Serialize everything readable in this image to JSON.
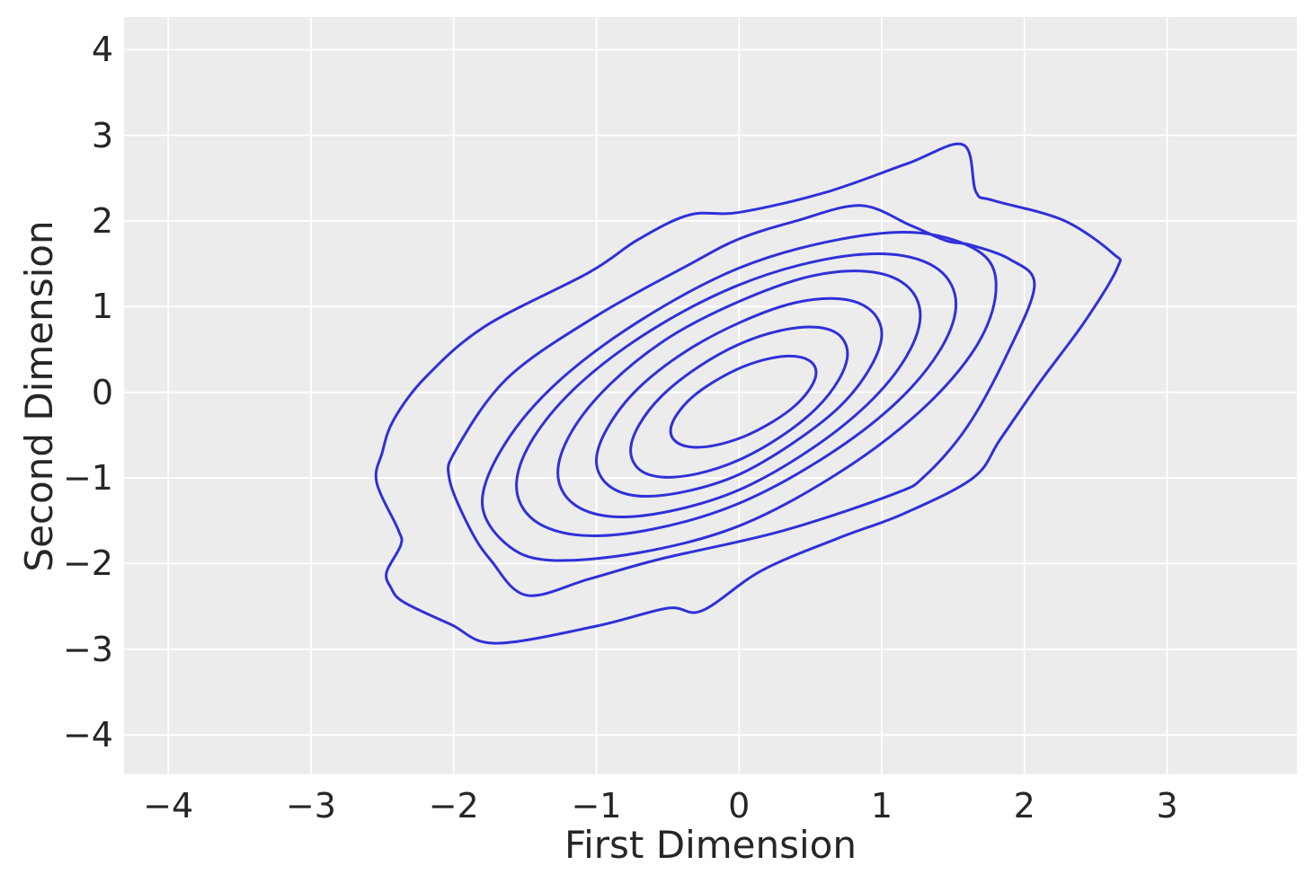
{
  "figure": {
    "background": "#ffffff",
    "axes_background": "#ececec",
    "grid_color": "#ffffff",
    "text_color": "#262626",
    "contour_color": "#3030d8",
    "contour_line_width": 3,
    "grid_line_width": 1.8
  },
  "chart_data": {
    "type": "contour",
    "subtype": "kde-density-contour",
    "title": "",
    "xlabel": "First Dimension",
    "ylabel": "Second Dimension",
    "x_ticks": [
      -4,
      -3,
      -2,
      -1,
      0,
      1,
      2,
      3
    ],
    "y_ticks": [
      -4,
      -3,
      -2,
      -1,
      0,
      1,
      2,
      3,
      4
    ],
    "xlim": [
      -4.31,
      3.91
    ],
    "ylim": [
      -4.46,
      4.38
    ],
    "grid": true,
    "legend": false,
    "levels_count": 8,
    "center": [
      0.03,
      -0.11
    ],
    "contours": [
      [
        [
          2.65,
          1.45
        ],
        [
          2.62,
          1.62
        ],
        [
          2.27,
          2.01
        ],
        [
          1.78,
          2.24
        ],
        [
          1.66,
          2.34
        ],
        [
          1.57,
          2.89
        ],
        [
          1.18,
          2.67
        ],
        [
          0.6,
          2.33
        ],
        [
          0.0,
          2.1
        ],
        [
          -0.35,
          2.07
        ],
        [
          -0.71,
          1.78
        ],
        [
          -1.05,
          1.4
        ],
        [
          -1.78,
          0.77
        ],
        [
          -2.2,
          0.17
        ],
        [
          -2.42,
          -0.32
        ],
        [
          -2.5,
          -0.7
        ],
        [
          -2.54,
          -1.05
        ],
        [
          -2.39,
          -1.6
        ],
        [
          -2.37,
          -1.78
        ],
        [
          -2.47,
          -2.1
        ],
        [
          -2.44,
          -2.28
        ],
        [
          -2.35,
          -2.45
        ],
        [
          -2.02,
          -2.71
        ],
        [
          -1.71,
          -2.93
        ],
        [
          -1.0,
          -2.73
        ],
        [
          -0.5,
          -2.52
        ],
        [
          -0.26,
          -2.55
        ],
        [
          0.16,
          -2.08
        ],
        [
          0.7,
          -1.7
        ],
        [
          1.15,
          -1.42
        ],
        [
          1.64,
          -1.0
        ],
        [
          1.83,
          -0.55
        ],
        [
          2.1,
          0.1
        ],
        [
          2.42,
          0.82
        ]
      ],
      [
        [
          2.07,
          1.25
        ],
        [
          1.9,
          1.55
        ],
        [
          1.62,
          1.72
        ],
        [
          1.45,
          1.77
        ],
        [
          1.2,
          1.95
        ],
        [
          0.85,
          2.18
        ],
        [
          0.4,
          2.0
        ],
        [
          0.0,
          1.79
        ],
        [
          -0.35,
          1.49
        ],
        [
          -1.0,
          0.89
        ],
        [
          -1.62,
          0.17
        ],
        [
          -1.98,
          -0.66
        ],
        [
          -2.03,
          -1.01
        ],
        [
          -1.89,
          -1.58
        ],
        [
          -1.74,
          -1.96
        ],
        [
          -1.49,
          -2.37
        ],
        [
          -1.05,
          -2.18
        ],
        [
          -0.56,
          -1.95
        ],
        [
          0.3,
          -1.62
        ],
        [
          1.08,
          -1.19
        ],
        [
          1.3,
          -0.98
        ],
        [
          1.6,
          -0.4
        ],
        [
          1.88,
          0.45
        ]
      ],
      [
        [
          1.8,
          1.18
        ],
        [
          1.7,
          1.62
        ],
        [
          1.27,
          1.86
        ],
        [
          0.69,
          1.78
        ],
        [
          0.0,
          1.45
        ],
        [
          -0.69,
          0.84
        ],
        [
          -1.27,
          0.12
        ],
        [
          -1.64,
          -0.6
        ],
        [
          -1.8,
          -1.28
        ],
        [
          -1.64,
          -1.76
        ],
        [
          -1.33,
          -1.96
        ],
        [
          -0.69,
          -1.87
        ],
        [
          0.0,
          -1.56
        ],
        [
          0.69,
          -0.95
        ],
        [
          1.27,
          -0.22
        ],
        [
          1.66,
          0.53
        ]
      ],
      [
        [
          1.52,
          1.03
        ],
        [
          1.4,
          1.43
        ],
        [
          1.07,
          1.61
        ],
        [
          0.57,
          1.54
        ],
        [
          -0.02,
          1.24
        ],
        [
          -0.61,
          0.73
        ],
        [
          -1.11,
          0.11
        ],
        [
          -1.44,
          -0.53
        ],
        [
          -1.56,
          -1.09
        ],
        [
          -1.44,
          -1.49
        ],
        [
          -1.11,
          -1.67
        ],
        [
          -0.61,
          -1.6
        ],
        [
          -0.02,
          -1.31
        ],
        [
          0.57,
          -0.79
        ],
        [
          1.07,
          -0.17
        ],
        [
          1.4,
          0.47
        ]
      ],
      [
        [
          1.27,
          0.9
        ],
        [
          1.17,
          1.25
        ],
        [
          0.9,
          1.41
        ],
        [
          0.49,
          1.35
        ],
        [
          0.0,
          1.06
        ],
        [
          -0.49,
          0.64
        ],
        [
          -0.9,
          0.1
        ],
        [
          -1.17,
          -0.45
        ],
        [
          -1.27,
          -0.94
        ],
        [
          -1.17,
          -1.29
        ],
        [
          -0.9,
          -1.45
        ],
        [
          -0.49,
          -1.39
        ],
        [
          0.0,
          -1.14
        ],
        [
          0.49,
          -0.68
        ],
        [
          0.9,
          -0.14
        ],
        [
          1.17,
          0.41
        ]
      ],
      [
        [
          1.0,
          0.68
        ],
        [
          0.92,
          0.96
        ],
        [
          0.71,
          1.09
        ],
        [
          0.38,
          1.04
        ],
        [
          0.0,
          0.81
        ],
        [
          -0.38,
          0.47
        ],
        [
          -0.71,
          0.04
        ],
        [
          -0.92,
          -0.41
        ],
        [
          -1.0,
          -0.8
        ],
        [
          -0.92,
          -1.08
        ],
        [
          -0.71,
          -1.21
        ],
        [
          -0.38,
          -1.16
        ],
        [
          0.0,
          -0.96
        ],
        [
          0.38,
          -0.59
        ],
        [
          0.71,
          -0.16
        ],
        [
          0.92,
          0.29
        ]
      ],
      [
        [
          0.76,
          0.45
        ],
        [
          0.7,
          0.67
        ],
        [
          0.54,
          0.76
        ],
        [
          0.29,
          0.72
        ],
        [
          0.0,
          0.56
        ],
        [
          -0.29,
          0.29
        ],
        [
          -0.54,
          -0.04
        ],
        [
          -0.7,
          -0.38
        ],
        [
          -0.76,
          -0.68
        ],
        [
          -0.7,
          -0.9
        ],
        [
          -0.54,
          -0.99
        ],
        [
          -0.29,
          -0.95
        ],
        [
          0.0,
          -0.79
        ],
        [
          0.29,
          -0.52
        ],
        [
          0.54,
          -0.19
        ],
        [
          0.7,
          0.15
        ]
      ],
      [
        [
          0.54,
          0.23
        ],
        [
          0.5,
          0.36
        ],
        [
          0.39,
          0.42
        ],
        [
          0.23,
          0.4
        ],
        [
          0.03,
          0.3
        ],
        [
          -0.17,
          0.13
        ],
        [
          -0.33,
          -0.06
        ],
        [
          -0.44,
          -0.27
        ],
        [
          -0.48,
          -0.45
        ],
        [
          -0.44,
          -0.58
        ],
        [
          -0.33,
          -0.64
        ],
        [
          -0.17,
          -0.62
        ],
        [
          0.03,
          -0.52
        ],
        [
          0.23,
          -0.35
        ],
        [
          0.39,
          -0.16
        ],
        [
          0.5,
          0.05
        ]
      ]
    ]
  }
}
